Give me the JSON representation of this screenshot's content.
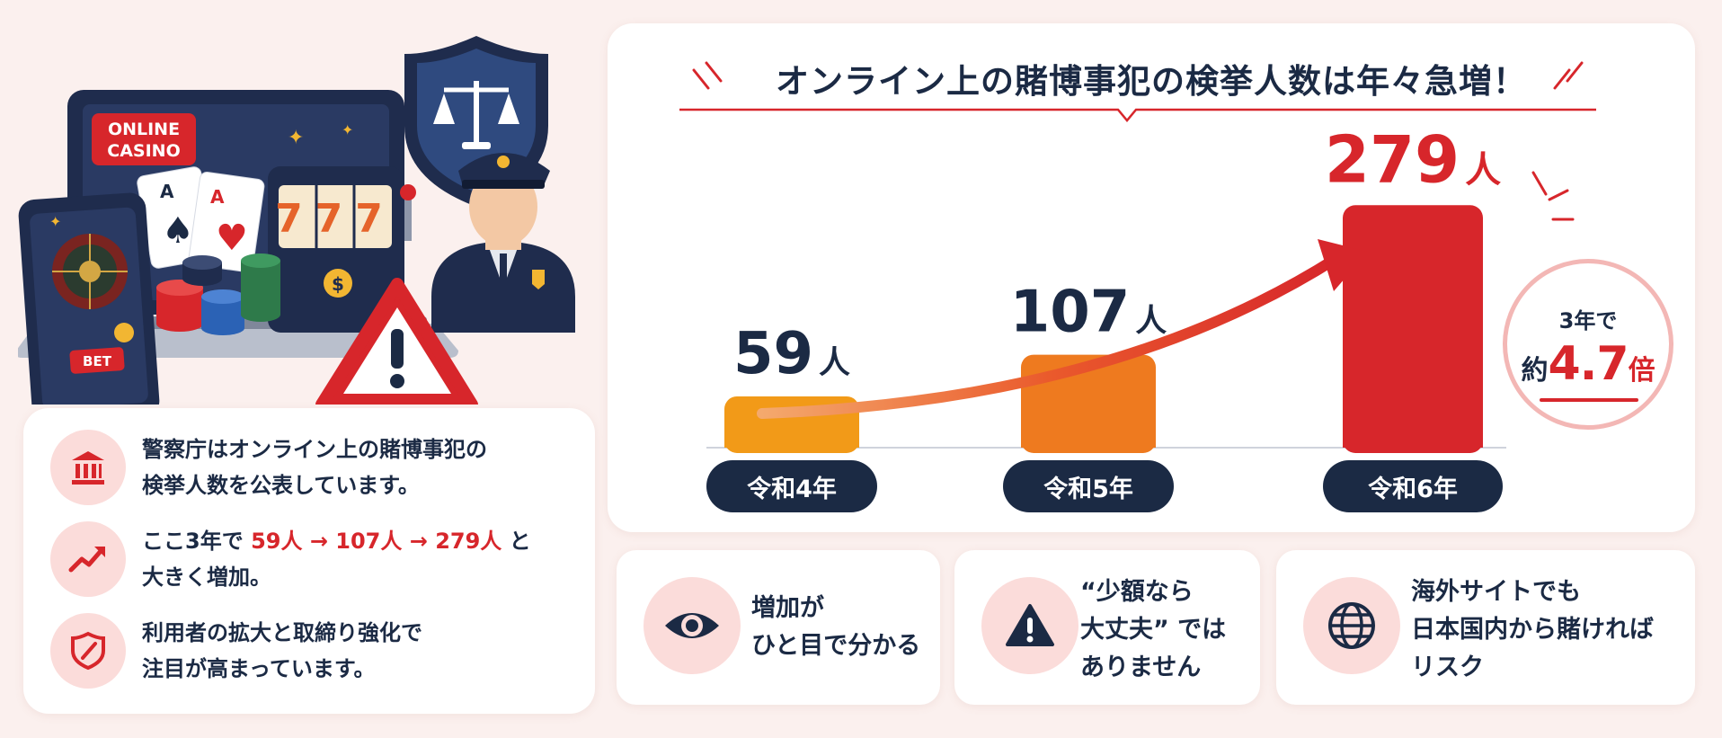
{
  "illustration": {
    "laptop_sign_line1": "ONLINE",
    "laptop_sign_line2": "CASINO",
    "slot_digits": "777",
    "phone_button": "BET",
    "coin_symbol": "$",
    "icons": [
      "laptop-icon",
      "smartphone-roulette-icon",
      "playing-cards-icon",
      "slot-machine-icon",
      "poker-chips-icon",
      "justice-shield-icon",
      "police-officer-icon",
      "warning-triangle-icon"
    ]
  },
  "info": {
    "items": [
      {
        "icon": "bank-building-icon",
        "line1": "警察庁はオンライン上の賭博事犯の",
        "line2": "検挙人数を公表しています。"
      },
      {
        "icon": "trend-up-icon",
        "line1_prefix": "ここ3年で ",
        "line1_highlight": "59人 → 107人 → 279人",
        "line1_suffix": " と",
        "line2": "大きく増加。"
      },
      {
        "icon": "shield-check-icon",
        "line1": "利用者の拡大と取締り強化で",
        "line2": "注目が高まっています。"
      }
    ]
  },
  "chart_data": {
    "type": "bar",
    "title": "オンライン上の賭博事犯の検挙人数は年々急増！",
    "categories": [
      "令和4年",
      "令和5年",
      "令和6年"
    ],
    "values": [
      59,
      107,
      279
    ],
    "unit": "人",
    "bar_colors": [
      "#f29a18",
      "#ee7a1f",
      "#d7262b"
    ],
    "label_colors": [
      "#1b2a44",
      "#1b2a44",
      "#d7262b"
    ],
    "ylim": [
      0,
      300
    ],
    "grid": false,
    "legend": "none",
    "trend_arrow": true
  },
  "summary": {
    "top": "3年で",
    "prefix": "約",
    "value": "4.7",
    "suffix": "倍"
  },
  "notes": [
    {
      "icon": "eye-icon",
      "line1": "増加が",
      "line2": "ひと目で分かる",
      "line3": ""
    },
    {
      "icon": "warning-icon",
      "line1": "“少額なら",
      "line2": "大丈夫” では",
      "line3": "ありません"
    },
    {
      "icon": "globe-icon",
      "line1": "海外サイトでも",
      "line2": "日本国内から賭ければ",
      "line3": "リスク"
    }
  ],
  "colors": {
    "navy": "#1b2a44",
    "red": "#d7262b",
    "pink_bg": "#fbf0ee",
    "icon_bg": "#fbdcda"
  }
}
